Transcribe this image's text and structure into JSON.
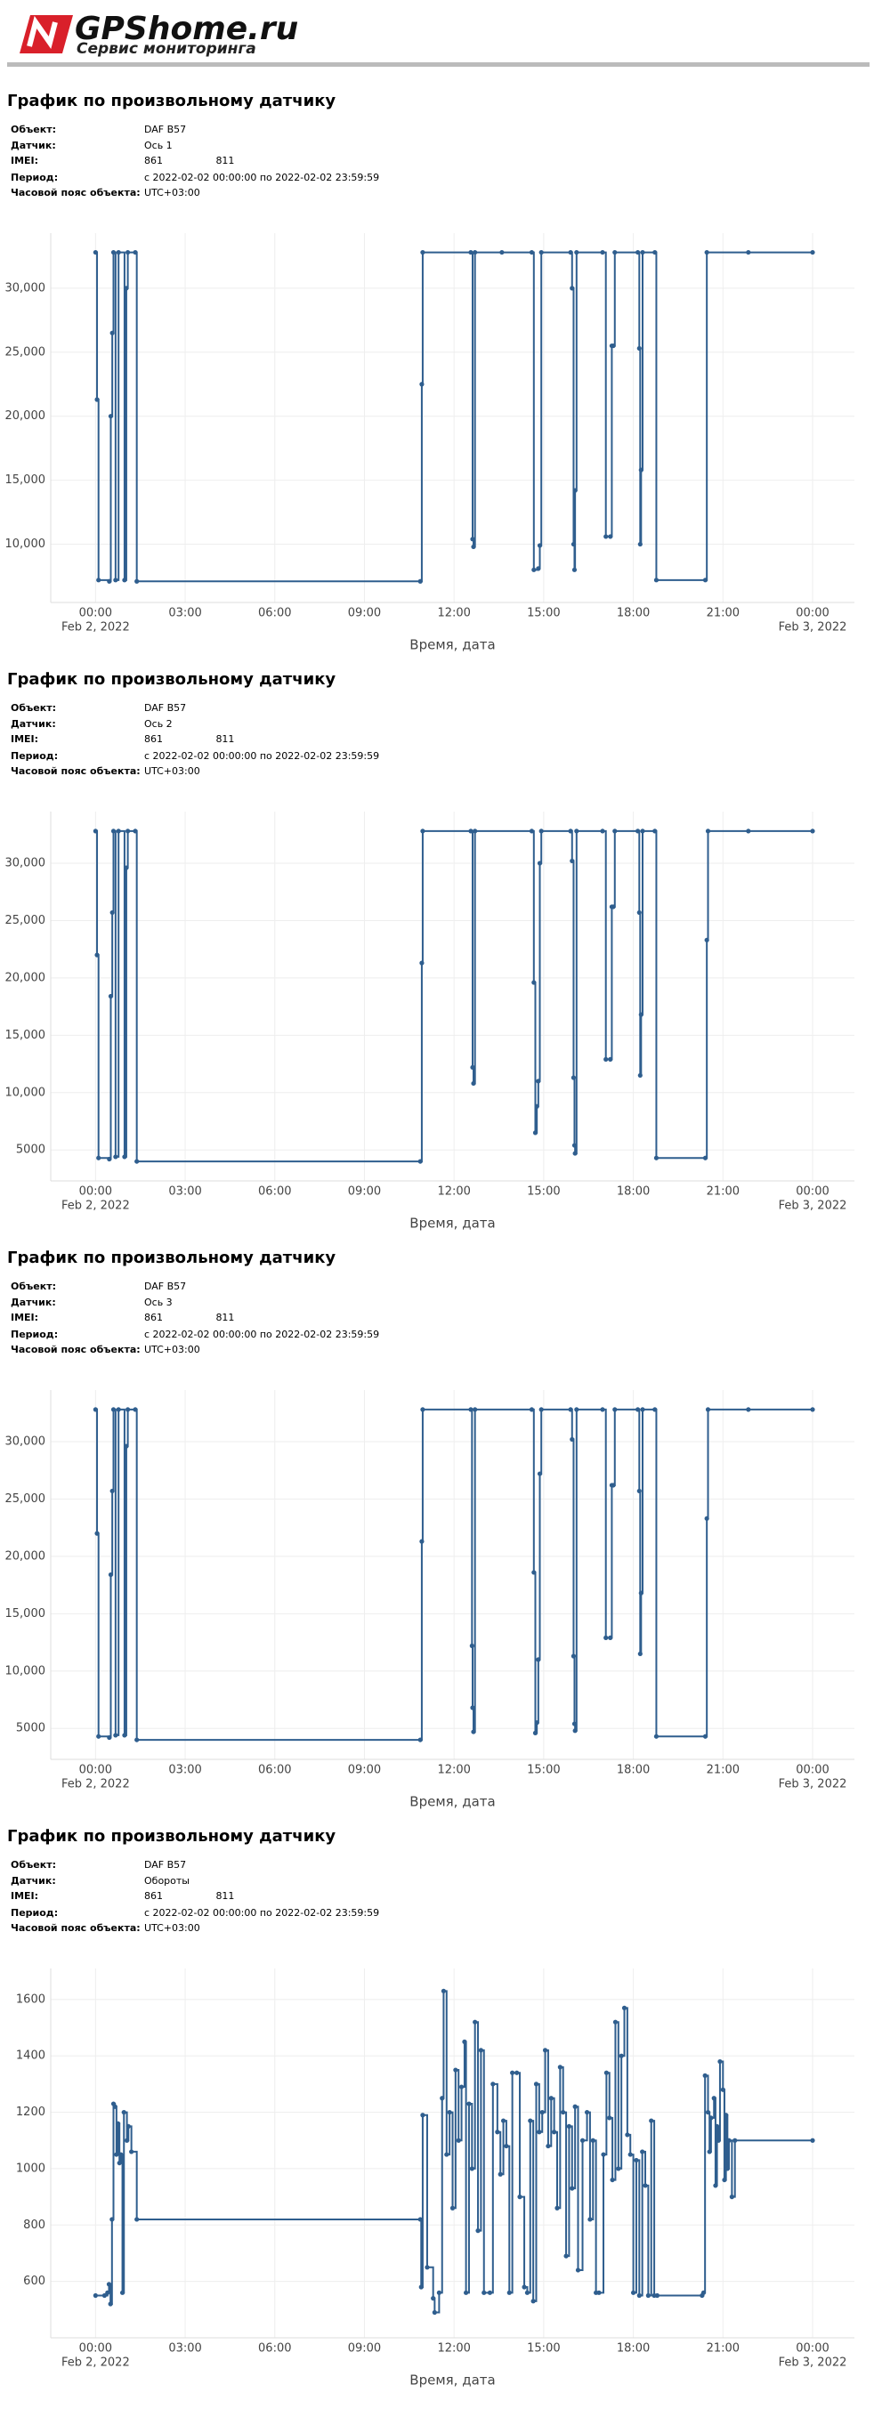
{
  "header": {
    "logo": "GPShome.ru",
    "tagline": "Сервис мониторинга"
  },
  "reports": [
    {
      "title": "График по произвольному датчику",
      "info": [
        {
          "label": "Объект:",
          "value": "DAF B57"
        },
        {
          "label": "Датчик:",
          "value": "Ось 1"
        },
        {
          "label": "IMEI:",
          "value": "861                 811"
        },
        {
          "label": "Период:",
          "value": "с 2022-02-02 00:00:00 по 2022-02-02 23:59:59"
        },
        {
          "label": "Часовой пояс объекта:",
          "value": "UTC+03:00"
        }
      ]
    },
    {
      "title": "График по произвольному датчику",
      "info": [
        {
          "label": "Объект:",
          "value": "DAF B57"
        },
        {
          "label": "Датчик:",
          "value": "Ось 2"
        },
        {
          "label": "IMEI:",
          "value": "861                 811"
        },
        {
          "label": "Период:",
          "value": "с 2022-02-02 00:00:00 по 2022-02-02 23:59:59"
        },
        {
          "label": "Часовой пояс объекта:",
          "value": "UTC+03:00"
        }
      ]
    },
    {
      "title": "График по произвольному датчику",
      "info": [
        {
          "label": "Объект:",
          "value": "DAF B57"
        },
        {
          "label": "Датчик:",
          "value": "Ось 3"
        },
        {
          "label": "IMEI:",
          "value": "861                 811"
        },
        {
          "label": "Период:",
          "value": "с 2022-02-02 00:00:00 по 2022-02-02 23:59:59"
        },
        {
          "label": "Часовой пояс объекта:",
          "value": "UTC+03:00"
        }
      ]
    },
    {
      "title": "График по произвольному датчику",
      "info": [
        {
          "label": "Объект:",
          "value": "DAF B57"
        },
        {
          "label": "Датчик:",
          "value": "Обороты"
        },
        {
          "label": "IMEI:",
          "value": "861                 811"
        },
        {
          "label": "Период:",
          "value": "с 2022-02-02 00:00:00 по 2022-02-02 23:59:59"
        },
        {
          "label": "Часовой пояс объекта:",
          "value": "UTC+03:00"
        }
      ]
    }
  ],
  "chart_data": [
    {
      "type": "step",
      "x_label": "Время, дата",
      "color": "#2f5e8e",
      "grid": true,
      "xlim": [
        -1.5,
        25.4
      ],
      "xticks": [
        {
          "value": 0,
          "label": "00:00"
        },
        {
          "value": 3,
          "label": "03:00"
        },
        {
          "value": 6,
          "label": "06:00"
        },
        {
          "value": 9,
          "label": "09:00"
        },
        {
          "value": 12,
          "label": "12:00"
        },
        {
          "value": 15,
          "label": "15:00"
        },
        {
          "value": 18,
          "label": "18:00"
        },
        {
          "value": 21,
          "label": "21:00"
        },
        {
          "value": 24,
          "label": "00:00"
        }
      ],
      "x_date_labels": [
        {
          "value": 0,
          "label": "Feb 2, 2022"
        },
        {
          "value": 24,
          "label": "Feb 3, 2022"
        }
      ],
      "ylim": [
        5450,
        34300
      ],
      "yticks": [
        {
          "value": 10000,
          "label": "10,000"
        },
        {
          "value": 15000,
          "label": "15,000"
        },
        {
          "value": 20000,
          "label": "20,000"
        },
        {
          "value": 25000,
          "label": "25,000"
        },
        {
          "value": 30000,
          "label": "30,000"
        }
      ],
      "x": [
        0,
        0.05,
        0.1,
        0.46,
        0.51,
        0.56,
        0.6,
        0.67,
        0.77,
        0.97,
        1.03,
        1.08,
        1.33,
        1.38,
        10.87,
        10.92,
        10.95,
        12.56,
        12.62,
        12.65,
        12.7,
        13.6,
        14.6,
        14.67,
        14.82,
        14.87,
        14.92,
        15.9,
        15.95,
        16.0,
        16.03,
        16.05,
        16.1,
        16.97,
        17.08,
        17.23,
        17.28,
        17.33,
        17.38,
        18.15,
        18.2,
        18.23,
        18.26,
        18.31,
        18.72,
        18.77,
        20.41,
        20.46,
        21.85,
        24
      ],
      "values": [
        32800,
        21300,
        7200,
        7100,
        20000,
        26500,
        32800,
        7200,
        32800,
        7200,
        30000,
        32800,
        32800,
        7100,
        7100,
        22500,
        32800,
        32800,
        10400,
        9800,
        32800,
        32800,
        32800,
        8000,
        8100,
        9900,
        32800,
        32800,
        30000,
        10000,
        8000,
        14200,
        32800,
        32800,
        10600,
        10600,
        25500,
        25500,
        32800,
        32800,
        25300,
        10000,
        15800,
        32800,
        32800,
        7200,
        7200,
        32800,
        32800,
        32800
      ]
    },
    {
      "type": "step",
      "x_label": "Время, дата",
      "color": "#2f5e8e",
      "grid": true,
      "xlim": [
        -1.5,
        25.4
      ],
      "xticks": [
        {
          "value": 0,
          "label": "00:00"
        },
        {
          "value": 3,
          "label": "03:00"
        },
        {
          "value": 6,
          "label": "06:00"
        },
        {
          "value": 9,
          "label": "09:00"
        },
        {
          "value": 12,
          "label": "12:00"
        },
        {
          "value": 15,
          "label": "15:00"
        },
        {
          "value": 18,
          "label": "18:00"
        },
        {
          "value": 21,
          "label": "21:00"
        },
        {
          "value": 24,
          "label": "00:00"
        }
      ],
      "x_date_labels": [
        {
          "value": 0,
          "label": "Feb 2, 2022"
        },
        {
          "value": 24,
          "label": "Feb 3, 2022"
        }
      ],
      "ylim": [
        2300,
        34500
      ],
      "yticks": [
        5000,
        {
          "value": 10000,
          "label": "10,000"
        },
        {
          "value": 15000,
          "label": "15,000"
        },
        {
          "value": 20000,
          "label": "20,000"
        },
        {
          "value": 25000,
          "label": "25,000"
        },
        {
          "value": 30000,
          "label": "30,000"
        }
      ],
      "x": [
        0,
        0.05,
        0.1,
        0.46,
        0.51,
        0.56,
        0.6,
        0.67,
        0.77,
        0.97,
        1.03,
        1.08,
        1.33,
        1.38,
        10.87,
        10.92,
        10.95,
        12.56,
        12.62,
        12.65,
        12.7,
        14.6,
        14.67,
        14.72,
        14.77,
        14.82,
        14.87,
        14.92,
        15.9,
        15.95,
        16.0,
        16.03,
        16.05,
        16.1,
        16.97,
        17.08,
        17.23,
        17.28,
        17.33,
        17.38,
        18.15,
        18.2,
        18.23,
        18.26,
        18.31,
        18.72,
        18.77,
        20.41,
        20.46,
        20.5,
        21.85,
        24
      ],
      "values": [
        32800,
        22000,
        4300,
        4200,
        18400,
        25700,
        32800,
        4400,
        32800,
        4400,
        29600,
        32800,
        32800,
        4000,
        4000,
        21300,
        32800,
        32800,
        12200,
        10800,
        32800,
        32800,
        19600,
        6500,
        8800,
        11000,
        30000,
        32800,
        32800,
        30200,
        11300,
        5400,
        4700,
        32800,
        32800,
        12900,
        12900,
        26200,
        26200,
        32800,
        32800,
        25700,
        11500,
        16800,
        32800,
        32800,
        4300,
        4300,
        23300,
        32800,
        32800,
        32800
      ]
    },
    {
      "type": "step",
      "x_label": "Время, дата",
      "color": "#2f5e8e",
      "grid": true,
      "xlim": [
        -1.5,
        25.4
      ],
      "xticks": [
        {
          "value": 0,
          "label": "00:00"
        },
        {
          "value": 3,
          "label": "03:00"
        },
        {
          "value": 6,
          "label": "06:00"
        },
        {
          "value": 9,
          "label": "09:00"
        },
        {
          "value": 12,
          "label": "12:00"
        },
        {
          "value": 15,
          "label": "15:00"
        },
        {
          "value": 18,
          "label": "18:00"
        },
        {
          "value": 21,
          "label": "21:00"
        },
        {
          "value": 24,
          "label": "00:00"
        }
      ],
      "x_date_labels": [
        {
          "value": 0,
          "label": "Feb 2, 2022"
        },
        {
          "value": 24,
          "label": "Feb 3, 2022"
        }
      ],
      "ylim": [
        2300,
        34500
      ],
      "yticks": [
        5000,
        {
          "value": 10000,
          "label": "10,000"
        },
        {
          "value": 15000,
          "label": "15,000"
        },
        {
          "value": 20000,
          "label": "20,000"
        },
        {
          "value": 25000,
          "label": "25,000"
        },
        {
          "value": 30000,
          "label": "30,000"
        }
      ],
      "x": [
        0,
        0.05,
        0.1,
        0.46,
        0.51,
        0.56,
        0.6,
        0.67,
        0.77,
        0.97,
        1.03,
        1.08,
        1.33,
        1.38,
        10.87,
        10.92,
        10.95,
        12.56,
        12.6,
        12.62,
        12.65,
        12.7,
        14.6,
        14.67,
        14.72,
        14.77,
        14.82,
        14.87,
        14.92,
        15.9,
        15.95,
        16.0,
        16.03,
        16.05,
        16.1,
        16.97,
        17.08,
        17.23,
        17.28,
        17.33,
        17.38,
        18.15,
        18.2,
        18.23,
        18.26,
        18.31,
        18.72,
        18.77,
        20.41,
        20.46,
        20.5,
        21.85,
        24
      ],
      "values": [
        32800,
        22000,
        4300,
        4200,
        18400,
        25700,
        32800,
        4400,
        32800,
        4400,
        29600,
        32800,
        32800,
        4000,
        4000,
        21300,
        32800,
        32800,
        12200,
        6800,
        4700,
        32800,
        32800,
        18600,
        4600,
        5500,
        11000,
        27200,
        32800,
        32800,
        30200,
        11300,
        5400,
        4800,
        32800,
        32800,
        12900,
        12900,
        26200,
        26200,
        32800,
        32800,
        25700,
        11500,
        16800,
        32800,
        32800,
        4300,
        4300,
        23300,
        32800,
        32800,
        32800
      ]
    },
    {
      "type": "step",
      "x_label": "Время, дата",
      "color": "#2f5e8e",
      "grid": true,
      "xlim": [
        -1.5,
        25.4
      ],
      "xticks": [
        {
          "value": 0,
          "label": "00:00"
        },
        {
          "value": 3,
          "label": "03:00"
        },
        {
          "value": 6,
          "label": "06:00"
        },
        {
          "value": 9,
          "label": "09:00"
        },
        {
          "value": 12,
          "label": "12:00"
        },
        {
          "value": 15,
          "label": "15:00"
        },
        {
          "value": 18,
          "label": "18:00"
        },
        {
          "value": 21,
          "label": "21:00"
        },
        {
          "value": 24,
          "label": "00:00"
        }
      ],
      "x_date_labels": [
        {
          "value": 0,
          "label": "Feb 2, 2022"
        },
        {
          "value": 24,
          "label": "Feb 3, 2022"
        }
      ],
      "ylim": [
        400,
        1710
      ],
      "yticks": [
        600,
        800,
        1000,
        1200,
        1400,
        1600
      ],
      "x": [
        0,
        0.3,
        0.4,
        0.45,
        0.5,
        0.55,
        0.6,
        0.65,
        0.7,
        0.75,
        0.8,
        0.85,
        0.9,
        0.95,
        1.05,
        1.1,
        1.2,
        1.38,
        10.87,
        10.9,
        10.95,
        11.1,
        11.3,
        11.35,
        11.5,
        11.6,
        11.65,
        11.75,
        11.85,
        11.95,
        12.05,
        12.15,
        12.25,
        12.35,
        12.4,
        12.5,
        12.6,
        12.7,
        12.8,
        12.9,
        13.0,
        13.2,
        13.3,
        13.45,
        13.55,
        13.65,
        13.75,
        13.85,
        13.95,
        14.1,
        14.2,
        14.35,
        14.45,
        14.55,
        14.65,
        14.75,
        14.85,
        14.95,
        15.05,
        15.15,
        15.25,
        15.35,
        15.45,
        15.55,
        15.65,
        15.75,
        15.85,
        15.95,
        16.05,
        16.15,
        16.3,
        16.45,
        16.55,
        16.65,
        16.75,
        16.85,
        17.0,
        17.1,
        17.2,
        17.3,
        17.4,
        17.5,
        17.6,
        17.7,
        17.8,
        17.9,
        18.0,
        18.1,
        18.2,
        18.3,
        18.4,
        18.5,
        18.6,
        18.7,
        18.8,
        20.3,
        20.35,
        20.4,
        20.5,
        20.55,
        20.6,
        20.7,
        20.75,
        20.8,
        20.85,
        20.9,
        21.0,
        21.05,
        21.1,
        21.15,
        21.2,
        21.3,
        21.4,
        24
      ],
      "values": [
        550,
        550,
        560,
        590,
        520,
        820,
        1230,
        1220,
        1050,
        1160,
        1020,
        1050,
        560,
        1200,
        1100,
        1150,
        1060,
        820,
        820,
        580,
        1190,
        650,
        540,
        490,
        560,
        1250,
        1630,
        1050,
        1200,
        860,
        1350,
        1100,
        1290,
        1450,
        560,
        1230,
        1000,
        1520,
        780,
        1420,
        560,
        560,
        1300,
        1130,
        980,
        1170,
        1080,
        560,
        1340,
        1340,
        900,
        580,
        560,
        1170,
        530,
        1300,
        1130,
        1200,
        1420,
        1080,
        1250,
        1130,
        860,
        1360,
        1200,
        690,
        1150,
        930,
        1220,
        640,
        1100,
        1200,
        820,
        1100,
        560,
        560,
        1050,
        1340,
        1180,
        960,
        1520,
        1000,
        1400,
        1570,
        1120,
        1050,
        560,
        1030,
        550,
        1060,
        940,
        550,
        1170,
        550,
        550,
        550,
        560,
        1330,
        1200,
        1060,
        1180,
        1250,
        940,
        1150,
        1100,
        1380,
        1280,
        960,
        1190,
        1000,
        1100,
        900,
        1100,
        1100
      ]
    }
  ]
}
